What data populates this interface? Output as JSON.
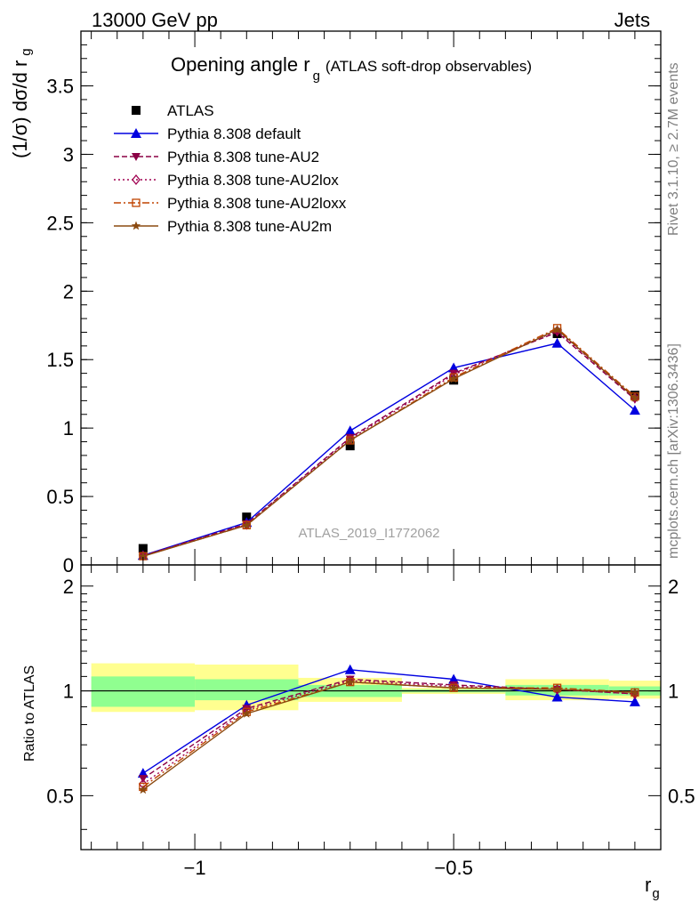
{
  "header": {
    "left": "13000 GeV pp",
    "right": "Jets"
  },
  "side_notes": {
    "rivet": "Rivet 3.1.10, ≥ 2.7M events",
    "mcplots": "mcplots.cern.ch [arXiv:1306.3436]"
  },
  "watermark": "ATLAS_2019_I1772062",
  "colors": {
    "atlas": "#000000",
    "default": "#0000e0",
    "AU2": "#8b0045",
    "AU2lox": "#a00050",
    "AU2loxx": "#c04400",
    "AU2m": "#8b4a10",
    "band_inner": "#90ff90",
    "band_outer": "#ffff90"
  },
  "chart_data": [
    {
      "type": "line",
      "title": "Opening angle r",
      "title_sub": "g",
      "title_suffix": "(ATLAS soft-drop observables)",
      "ylabel": "(1/σ) dσ/d r",
      "ylabel_sub": "g",
      "xlim": [
        -1.22,
        -0.1
      ],
      "ylim": [
        0,
        3.9
      ],
      "y_ticks": [
        "0",
        "0.5",
        "1",
        "1.5",
        "2",
        "2.5",
        "3",
        "3.5"
      ],
      "legend_position": "top-left",
      "x": [
        -1.1,
        -0.9,
        -0.7,
        -0.5,
        -0.3,
        -0.15
      ],
      "series": [
        {
          "name": "ATLAS",
          "key": "atlas",
          "marker": "square",
          "values": [
            0.12,
            0.35,
            0.87,
            1.35,
            1.69,
            1.24
          ]
        },
        {
          "name": "Pythia 8.308 default",
          "key": "default",
          "marker": "triangle-up",
          "values": [
            0.07,
            0.31,
            0.98,
            1.44,
            1.62,
            1.13
          ]
        },
        {
          "name": "Pythia 8.308 tune-AU2",
          "key": "AU2",
          "marker": "triangle-down",
          "values": [
            0.068,
            0.3,
            0.93,
            1.4,
            1.7,
            1.21
          ]
        },
        {
          "name": "Pythia 8.308 tune-AU2lox",
          "key": "AU2lox",
          "marker": "diamond",
          "values": [
            0.066,
            0.295,
            0.92,
            1.39,
            1.71,
            1.22
          ]
        },
        {
          "name": "Pythia 8.308 tune-AU2loxx",
          "key": "AU2loxx",
          "marker": "open-square",
          "values": [
            0.064,
            0.29,
            0.91,
            1.37,
            1.73,
            1.23
          ]
        },
        {
          "name": "Pythia 8.308 tune-AU2m",
          "key": "AU2m",
          "marker": "star",
          "values": [
            0.063,
            0.29,
            0.91,
            1.36,
            1.72,
            1.22
          ]
        }
      ]
    },
    {
      "type": "line",
      "ylabel": "Ratio to ATLAS",
      "xlabel": "r",
      "xlabel_sub": "g",
      "xlim": [
        -1.22,
        -0.1
      ],
      "ylim": [
        0.35,
        2.3
      ],
      "x_ticks": [
        "−1",
        "−0.5"
      ],
      "y_ticks": [
        "0.5",
        "1",
        "2"
      ],
      "bin_edges": [
        -1.2,
        -1.0,
        -0.8,
        -0.6,
        -0.4,
        -0.2,
        -0.1
      ],
      "band_inner": [
        [
          0.9,
          1.1
        ],
        [
          0.94,
          1.08
        ],
        [
          0.96,
          1.04
        ],
        [
          0.99,
          1.01
        ],
        [
          0.97,
          1.04
        ],
        [
          0.97,
          1.03
        ]
      ],
      "band_outer": [
        [
          0.87,
          1.2
        ],
        [
          0.88,
          1.19
        ],
        [
          0.93,
          1.09
        ],
        [
          0.98,
          1.02
        ],
        [
          0.94,
          1.08
        ],
        [
          0.95,
          1.07
        ]
      ],
      "x": [
        -1.1,
        -0.9,
        -0.7,
        -0.5,
        -0.3,
        -0.15
      ],
      "series": [
        {
          "name": "Pythia 8.308 default",
          "key": "default",
          "marker": "triangle-up",
          "values": [
            0.58,
            0.91,
            1.15,
            1.08,
            0.96,
            0.93
          ]
        },
        {
          "name": "Pythia 8.308 tune-AU2",
          "key": "AU2",
          "marker": "triangle-down",
          "values": [
            0.56,
            0.89,
            1.08,
            1.04,
            1.01,
            0.98
          ]
        },
        {
          "name": "Pythia 8.308 tune-AU2lox",
          "key": "AU2lox",
          "marker": "diamond",
          "values": [
            0.54,
            0.88,
            1.07,
            1.03,
            1.01,
            0.98
          ]
        },
        {
          "name": "Pythia 8.308 tune-AU2loxx",
          "key": "AU2loxx",
          "marker": "open-square",
          "values": [
            0.53,
            0.87,
            1.06,
            1.02,
            1.02,
            0.99
          ]
        },
        {
          "name": "Pythia 8.308 tune-AU2m",
          "key": "AU2m",
          "marker": "star",
          "values": [
            0.52,
            0.86,
            1.06,
            1.02,
            1.01,
            0.99
          ]
        }
      ]
    }
  ]
}
